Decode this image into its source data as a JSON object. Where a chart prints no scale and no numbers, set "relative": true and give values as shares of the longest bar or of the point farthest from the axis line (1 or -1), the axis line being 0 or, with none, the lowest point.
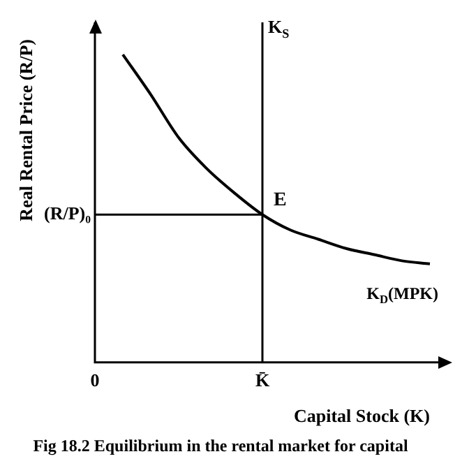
{
  "chart_data": {
    "type": "line",
    "title": "Fig 18.2 Equilibrium in the rental market for capital",
    "xlabel": "Capital Stock (K)",
    "ylabel": "Real Rental Price (R/P)",
    "relative": true,
    "categories": [
      "0",
      null,
      null,
      null,
      null,
      null,
      "K̄",
      null,
      null,
      null,
      null,
      null,
      null
    ],
    "series": [
      {
        "name": "K$_{D}$(MPK)",
        "color": "#000000",
        "values": [
          null,
          1,
          0.87,
          0.73,
          0.63,
          0.55,
          0.48,
          0.43,
          0.4,
          0.37,
          0.35,
          0.33,
          0.32
        ]
      }
    ],
    "ref_lines": [
      {
        "axis": "x",
        "value": "K̄",
        "label": "K$_{S}$",
        "color": "#000000"
      },
      {
        "axis": "y",
        "value": 0.48,
        "label": "(R/P)₀",
        "color": "#000000"
      }
    ],
    "annotations": [
      {
        "text": "E",
        "x": "K̄",
        "y": 0.48
      }
    ],
    "grid": false,
    "legend": false,
    "marker": "none",
    "line_style": "solid"
  }
}
